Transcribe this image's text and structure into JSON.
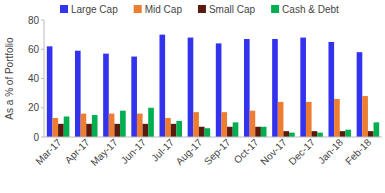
{
  "chart_data": {
    "type": "bar",
    "y_label": "As a % of Portfolio",
    "categories": [
      "Mar-17",
      "Apr-17",
      "May-17",
      "Jun-17",
      "Jul-17",
      "Aug-17",
      "Sep-17",
      "Oct-17",
      "Nov-17",
      "Dec-17",
      "Jan-18",
      "Feb-18"
    ],
    "series": [
      {
        "name": "Large Cap",
        "color": "#3333ee",
        "values": [
          62,
          59,
          57,
          55,
          70,
          68,
          64,
          67,
          67,
          68,
          65,
          58
        ]
      },
      {
        "name": "Mid Cap",
        "color": "#ed7d31",
        "values": [
          13,
          16,
          16,
          16,
          13,
          17,
          17,
          18,
          24,
          24,
          26,
          28
        ]
      },
      {
        "name": "Small Cap",
        "color": "#5a1a10",
        "values": [
          9,
          9,
          9,
          9,
          9,
          7,
          7,
          7,
          4,
          4,
          4,
          4
        ]
      },
      {
        "name": "Cash & Debt",
        "color": "#00b050",
        "values": [
          14,
          15,
          18,
          20,
          11,
          6,
          10,
          7,
          3,
          3,
          5,
          10
        ]
      }
    ],
    "ylim": [
      0,
      80
    ],
    "yticks": [
      0,
      20,
      40,
      60,
      80
    ],
    "grid": false,
    "legend": "top"
  }
}
